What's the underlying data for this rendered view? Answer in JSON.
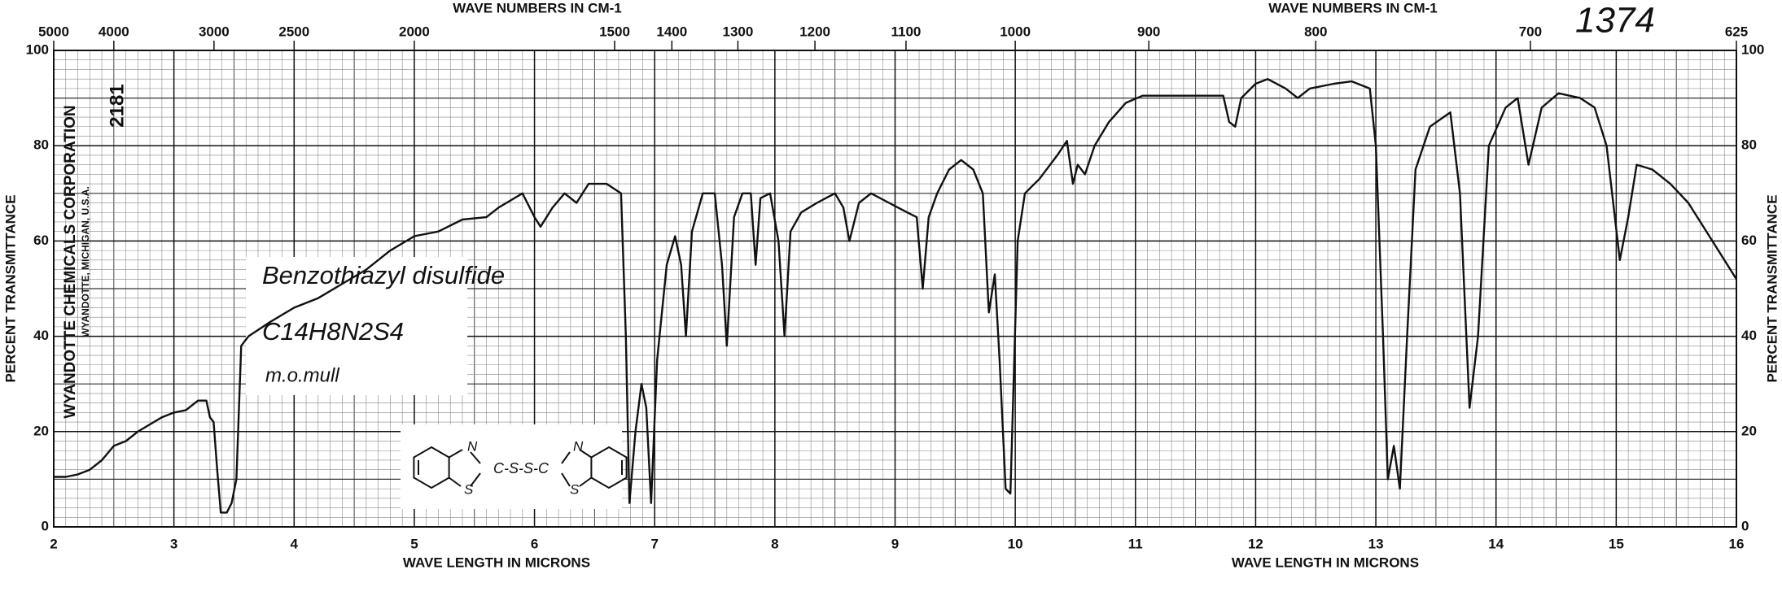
{
  "chart_data": {
    "type": "line",
    "color": "#111111",
    "xlim": [
      2,
      16
    ],
    "ylim": [
      0,
      100
    ],
    "xticks": [
      2,
      3,
      4,
      5,
      6,
      7,
      8,
      9,
      10,
      11,
      12,
      13,
      14,
      15,
      16
    ],
    "yticks": [
      0,
      20,
      40,
      60,
      80,
      100
    ],
    "x2ticks": [
      5000,
      4000,
      3000,
      2500,
      2000,
      1500,
      1400,
      1300,
      1200,
      1100,
      1000,
      900,
      800,
      700,
      625
    ],
    "grid": true,
    "xlabel": [
      "WAVE LENGTH IN MICRONS",
      "WAVE LENGTH IN MICRONS"
    ],
    "x2label": [
      "WAVE NUMBERS IN CM-1",
      "WAVE NUMBERS IN CM-1"
    ],
    "ylabel": "PERCENT TRANSMITTANCE",
    "y2label": "PERCENT TRANSMITTANCE",
    "annotations": {
      "chart_number": "1374",
      "company": "WYANDOTTE CHEMICALS CORPORATION",
      "location": "WYANDOTTE, MICHIGAN, U.S.A.",
      "serial": "2181",
      "compound": "Benzothiazyl disulfide",
      "formula": "C14H8N2S4",
      "sample": "m.o.mull",
      "structure_labels": [
        "N",
        "S",
        "C-S-S-C",
        "N",
        "S"
      ]
    },
    "x": [
      2.0,
      2.1,
      2.2,
      2.3,
      2.4,
      2.5,
      2.6,
      2.7,
      2.8,
      2.9,
      3.0,
      3.1,
      3.2,
      3.27,
      3.3,
      3.33,
      3.36,
      3.39,
      3.44,
      3.48,
      3.52,
      3.56,
      3.62,
      3.8,
      4.0,
      4.2,
      4.4,
      4.6,
      4.8,
      5.0,
      5.2,
      5.4,
      5.6,
      5.7,
      5.9,
      6.0,
      6.05,
      6.15,
      6.25,
      6.35,
      6.45,
      6.6,
      6.72,
      6.76,
      6.79,
      6.84,
      6.89,
      6.93,
      6.97,
      7.02,
      7.1,
      7.17,
      7.22,
      7.26,
      7.31,
      7.4,
      7.5,
      7.56,
      7.6,
      7.66,
      7.73,
      7.8,
      7.84,
      7.88,
      7.96,
      8.03,
      8.08,
      8.13,
      8.22,
      8.35,
      8.5,
      8.57,
      8.62,
      8.7,
      8.8,
      8.95,
      9.1,
      9.18,
      9.23,
      9.28,
      9.35,
      9.45,
      9.55,
      9.65,
      9.73,
      9.78,
      9.83,
      9.87,
      9.92,
      9.96,
      10.02,
      10.08,
      10.2,
      10.35,
      10.43,
      10.48,
      10.52,
      10.58,
      10.66,
      10.78,
      10.92,
      11.06,
      11.4,
      11.73,
      11.78,
      11.83,
      11.88,
      12.0,
      12.1,
      12.25,
      12.35,
      12.45,
      12.65,
      12.8,
      12.95,
      13.0,
      13.06,
      13.1,
      13.15,
      13.2,
      13.26,
      13.33,
      13.45,
      13.62,
      13.7,
      13.78,
      13.85,
      13.94,
      14.08,
      14.18,
      14.27,
      14.38,
      14.52,
      14.7,
      14.82,
      14.92,
      15.03,
      15.1,
      15.17,
      15.3,
      15.45,
      15.6,
      15.8,
      16.0
    ],
    "values": [
      10.5,
      10.5,
      11,
      12,
      14,
      17,
      18,
      20,
      21.5,
      23,
      24,
      24.5,
      26.5,
      26.5,
      23,
      22,
      12,
      3,
      3,
      5,
      10,
      38,
      40,
      43,
      46,
      48,
      51,
      54,
      58,
      61,
      62,
      64.5,
      65,
      67,
      70,
      65,
      63,
      67,
      70,
      68,
      72,
      72,
      70,
      40,
      5,
      20,
      30,
      25,
      5,
      35,
      55,
      61,
      55,
      40,
      62,
      70,
      70,
      55,
      38,
      65,
      70,
      70,
      55,
      69,
      70,
      60,
      40,
      62,
      66,
      68,
      70,
      67,
      60,
      68,
      70,
      68,
      66,
      65,
      50,
      65,
      70,
      75,
      77,
      75,
      70,
      45,
      53,
      35,
      8,
      7,
      60,
      70,
      73,
      78,
      81,
      72,
      76,
      74,
      80,
      85,
      89,
      90.5,
      90.5,
      90.5,
      85,
      84,
      90,
      93,
      94,
      92,
      90,
      92,
      93,
      93.5,
      92,
      80,
      40,
      10,
      17,
      8,
      40,
      75,
      84,
      87,
      70,
      25,
      40,
      80,
      88,
      90,
      76,
      88,
      91,
      90,
      88,
      80,
      56,
      65,
      76,
      75,
      72,
      68,
      60,
      52
    ]
  }
}
